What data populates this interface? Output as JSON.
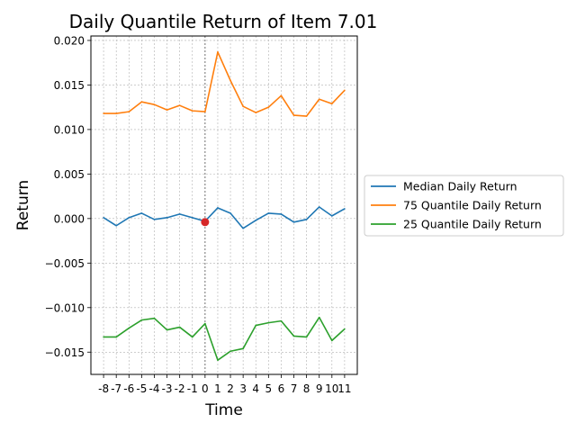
{
  "chart_data": {
    "type": "line",
    "title": "Daily Quantile Return of Item 7.01",
    "xlabel": "Time",
    "ylabel": "Return",
    "x": [
      -8,
      -7,
      -6,
      -5,
      -4,
      -3,
      -2,
      -1,
      0,
      1,
      2,
      3,
      4,
      5,
      6,
      7,
      8,
      9,
      10,
      11
    ],
    "x_tick_labels": [
      "-8",
      "-7",
      "-6",
      "-5",
      "-4",
      "-3",
      "-2",
      "-1",
      "0",
      "1",
      "2",
      "3",
      "4",
      "5",
      "6",
      "7",
      "8",
      "9",
      "10",
      "11"
    ],
    "xlim": [
      -9,
      12
    ],
    "ylim": [
      -0.0175,
      0.0205
    ],
    "y_ticks": [
      -0.015,
      -0.01,
      -0.005,
      0.0,
      0.005,
      0.01,
      0.015,
      0.02
    ],
    "y_tick_labels": [
      "−0.015",
      "−0.010",
      "−0.005",
      "0.000",
      "0.005",
      "0.010",
      "0.015",
      "0.020"
    ],
    "grid": true,
    "legend_position": "right-outside",
    "event_line_x": 0,
    "event_marker": {
      "x": 0,
      "y": -0.0004,
      "color": "#d62728"
    },
    "series": [
      {
        "name": "Median Daily Return",
        "color": "#1f77b4",
        "values": [
          0.0001,
          -0.0008,
          0.0001,
          0.0006,
          -0.0001,
          0.0001,
          0.0005,
          0.0001,
          -0.0003,
          0.0012,
          0.0006,
          -0.0011,
          -0.0002,
          0.0006,
          0.0005,
          -0.0004,
          -0.0001,
          0.0013,
          0.0003,
          0.0011
        ]
      },
      {
        "name": "75 Quantile Daily Return",
        "color": "#ff7f0e",
        "values": [
          0.0118,
          0.0118,
          0.012,
          0.0131,
          0.0128,
          0.0122,
          0.0127,
          0.0121,
          0.012,
          0.0187,
          0.0155,
          0.0126,
          0.0119,
          0.0125,
          0.0138,
          0.0116,
          0.0115,
          0.0134,
          0.0129,
          0.0144
        ]
      },
      {
        "name": "25 Quantile Daily Return",
        "color": "#2ca02c",
        "values": [
          -0.0133,
          -0.0133,
          -0.0123,
          -0.0114,
          -0.0112,
          -0.0125,
          -0.0122,
          -0.0133,
          -0.0118,
          -0.0159,
          -0.0149,
          -0.0146,
          -0.012,
          -0.0117,
          -0.0115,
          -0.0132,
          -0.0133,
          -0.0111,
          -0.0137,
          -0.0124
        ]
      }
    ]
  }
}
